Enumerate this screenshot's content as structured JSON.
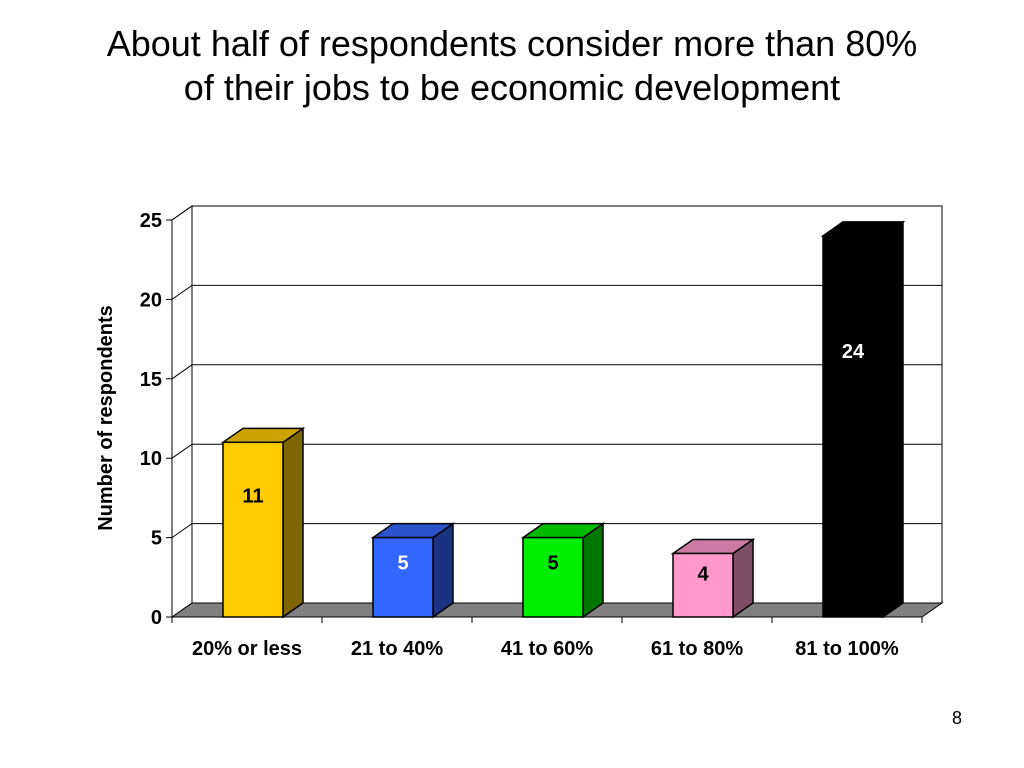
{
  "slide": {
    "title_line1": "About half of respondents consider more than 80%",
    "title_line2": "of their jobs to be economic development",
    "page_number": "8"
  },
  "chart_data": {
    "type": "bar",
    "title": "",
    "xlabel": "",
    "ylabel": "Number of respondents",
    "categories": [
      "20% or less",
      "21 to 40%",
      "41 to 60%",
      "61 to 80%",
      "81 to 100%"
    ],
    "values": [
      11,
      5,
      5,
      4,
      24
    ],
    "data_labels": [
      "11",
      "5",
      "5",
      "4",
      "24"
    ],
    "ylim": [
      0,
      25
    ],
    "yticks": [
      0,
      5,
      10,
      15,
      20,
      25
    ],
    "grid": true,
    "legend": "none",
    "style": "3d-column",
    "colors": {
      "bars_front": [
        "#FFCC00",
        "#3366FF",
        "#00EE00",
        "#FF99CC",
        "#000000"
      ],
      "bars_side": [
        "#806600",
        "#1A3380",
        "#007700",
        "#804D66",
        "#000000"
      ],
      "bars_top": [
        "#CCA300",
        "#2952CC",
        "#00BB00",
        "#CC7AA3",
        "#000000"
      ],
      "label_colors": [
        "#000000",
        "#FFFFFF",
        "#000000",
        "#000000",
        "#FFFFFF"
      ],
      "floor": "#808080"
    }
  }
}
